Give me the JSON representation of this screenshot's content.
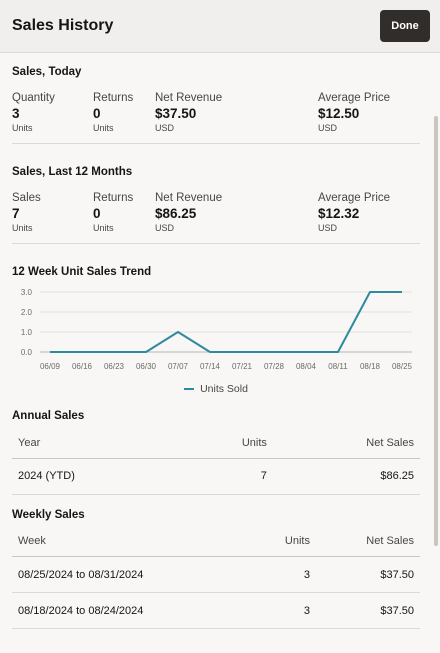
{
  "header": {
    "title": "Sales History",
    "done_label": "Done"
  },
  "today": {
    "title": "Sales, Today",
    "quantity": {
      "label": "Quantity",
      "value": "3",
      "unit": "Units"
    },
    "returns": {
      "label": "Returns",
      "value": "0",
      "unit": "Units"
    },
    "net_revenue": {
      "label": "Net Revenue",
      "value": "$37.50",
      "unit": "USD"
    },
    "average_price": {
      "label": "Average Price",
      "value": "$12.50",
      "unit": "USD"
    }
  },
  "last12": {
    "title": "Sales, Last 12 Months",
    "sales": {
      "label": "Sales",
      "value": "7",
      "unit": "Units"
    },
    "returns": {
      "label": "Returns",
      "value": "0",
      "unit": "Units"
    },
    "net_revenue": {
      "label": "Net Revenue",
      "value": "$86.25",
      "unit": "USD"
    },
    "average_price": {
      "label": "Average Price",
      "value": "$12.32",
      "unit": "USD"
    }
  },
  "trend": {
    "title": "12 Week Unit Sales Trend"
  },
  "chart_data": {
    "type": "line",
    "categories": [
      "06/09",
      "06/16",
      "06/23",
      "06/30",
      "07/07",
      "07/14",
      "07/21",
      "07/28",
      "08/04",
      "08/11",
      "08/18",
      "08/25"
    ],
    "series": [
      {
        "name": "Units Sold",
        "values": [
          0,
          0,
          0,
          0,
          1,
          0,
          0,
          0,
          0,
          0,
          3,
          3
        ],
        "color": "#2e8a9e"
      }
    ],
    "yticks": [
      "0.0",
      "1.0",
      "2.0",
      "3.0"
    ],
    "ylim": [
      0,
      3
    ],
    "grid": true,
    "legend": "bottom"
  },
  "annual": {
    "title": "Annual Sales",
    "headers": {
      "year": "Year",
      "units": "Units",
      "net_sales": "Net Sales"
    },
    "rows": [
      {
        "year": "2024 (YTD)",
        "units": "7",
        "net_sales": "$86.25"
      }
    ]
  },
  "weekly": {
    "title": "Weekly Sales",
    "headers": {
      "week": "Week",
      "units": "Units",
      "net_sales": "Net Sales"
    },
    "rows": [
      {
        "week": "08/25/2024 to 08/31/2024",
        "units": "3",
        "net_sales": "$37.50"
      },
      {
        "week": "08/18/2024 to 08/24/2024",
        "units": "3",
        "net_sales": "$37.50"
      }
    ]
  }
}
